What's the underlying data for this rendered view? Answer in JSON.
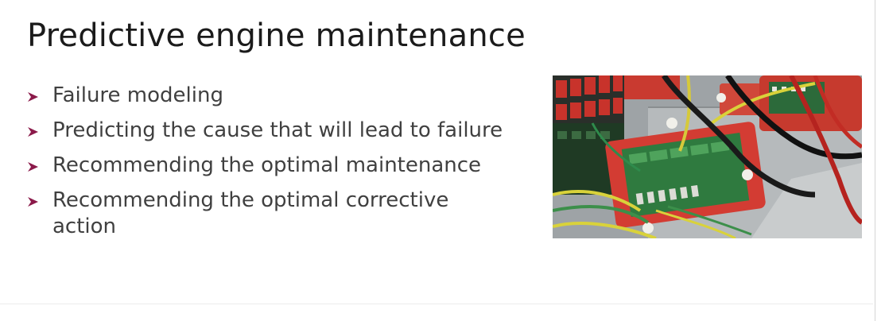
{
  "slide": {
    "title": "Predictive engine maintenance",
    "bullets": [
      "Failure modeling",
      "Predicting the cause that will lead to failure",
      "Recommending the optimal maintenance",
      "Recommending the optimal corrective action"
    ],
    "bullet_icon": "arrowhead-bullet-icon",
    "bullet_color": "#8b1a4a",
    "photo_subject": "circuit boards with wiring"
  }
}
